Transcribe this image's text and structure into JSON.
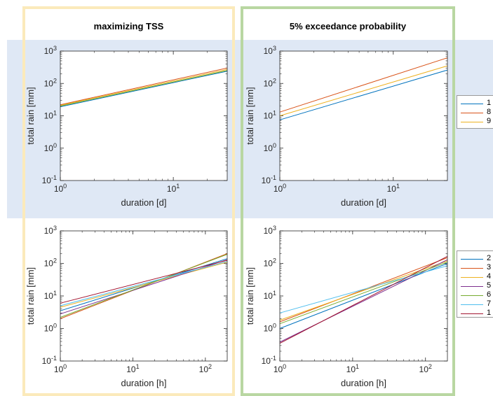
{
  "columns": [
    {
      "title": "maximizing TSS"
    },
    {
      "title": "5% exceedance probability"
    }
  ],
  "legends": [
    {
      "entries": [
        {
          "label": "1",
          "color": "#0072bd"
        },
        {
          "label": "8",
          "color": "#d95319"
        },
        {
          "label": "9",
          "color": "#edb120"
        }
      ]
    },
    {
      "entries": [
        {
          "label": "2",
          "color": "#0072bd"
        },
        {
          "label": "3",
          "color": "#d95319"
        },
        {
          "label": "4",
          "color": "#edb120"
        },
        {
          "label": "5",
          "color": "#7e2f8e"
        },
        {
          "label": "6",
          "color": "#77ac30"
        },
        {
          "label": "7",
          "color": "#4dbeee"
        },
        {
          "label": "1",
          "color": "#a2142f"
        }
      ]
    }
  ],
  "chart_data": [
    {
      "type": "line",
      "xlabel": "duration [d]",
      "ylabel": "total rain [mm]",
      "x_scale": "log",
      "y_scale": "log",
      "xlim": [
        1,
        30
      ],
      "ylim": [
        0.1,
        1000
      ],
      "x_ticks": [
        "10^0",
        "10^1"
      ],
      "y_ticks": [
        "10^-1",
        "10^0",
        "10^1",
        "10^2",
        "10^3"
      ],
      "series": [
        {
          "name": "1",
          "color": "#0072bd",
          "x": [
            1,
            30
          ],
          "y": [
            19,
            240
          ]
        },
        {
          "name": "8",
          "color": "#d95319",
          "x": [
            1,
            30
          ],
          "y": [
            22,
            300
          ]
        },
        {
          "name": "9",
          "color": "#edb120",
          "x": [
            1,
            30
          ],
          "y": [
            21,
            270
          ]
        },
        {
          "color": "#77ac30",
          "x": [
            1,
            30
          ],
          "y": [
            20,
            250
          ]
        }
      ]
    },
    {
      "type": "line",
      "xlabel": "duration [d]",
      "ylabel": "total rain [mm]",
      "x_scale": "log",
      "y_scale": "log",
      "xlim": [
        1,
        30
      ],
      "ylim": [
        0.1,
        1000
      ],
      "x_ticks": [
        "10^0",
        "10^1"
      ],
      "y_ticks": [
        "10^-1",
        "10^0",
        "10^1",
        "10^2",
        "10^3"
      ],
      "series": [
        {
          "name": "1",
          "color": "#0072bd",
          "x": [
            1,
            30
          ],
          "y": [
            7.5,
            260
          ]
        },
        {
          "name": "8",
          "color": "#d95319",
          "x": [
            1,
            30
          ],
          "y": [
            13,
            620
          ]
        },
        {
          "name": "9",
          "color": "#edb120",
          "x": [
            1,
            30
          ],
          "y": [
            10,
            350
          ]
        }
      ]
    },
    {
      "type": "line",
      "xlabel": "duration [h]",
      "ylabel": "total rain [mm]",
      "x_scale": "log",
      "y_scale": "log",
      "xlim": [
        1,
        200
      ],
      "ylim": [
        0.1,
        1000
      ],
      "x_ticks": [
        "10^0",
        "10^1",
        "10^2"
      ],
      "y_ticks": [
        "10^-1",
        "10^0",
        "10^1",
        "10^2",
        "10^3"
      ],
      "series": [
        {
          "color": "#0072bd",
          "x": [
            1,
            200
          ],
          "y": [
            3.5,
            140
          ]
        },
        {
          "color": "#d95319",
          "x": [
            1,
            200
          ],
          "y": [
            2.0,
            200
          ]
        },
        {
          "color": "#edb120",
          "x": [
            1,
            200
          ],
          "y": [
            4.5,
            110
          ]
        },
        {
          "color": "#7e2f8e",
          "x": [
            1,
            200
          ],
          "y": [
            2.8,
            130
          ]
        },
        {
          "color": "#77ac30",
          "x": [
            1,
            200
          ],
          "y": [
            2.2,
            190
          ]
        },
        {
          "color": "#4dbeee",
          "x": [
            1,
            200
          ],
          "y": [
            5.0,
            115
          ]
        },
        {
          "color": "#a2142f",
          "x": [
            1,
            200
          ],
          "y": [
            6.0,
            125
          ]
        }
      ]
    },
    {
      "type": "line",
      "xlabel": "duration [h]",
      "ylabel": "total rain [mm]",
      "x_scale": "log",
      "y_scale": "log",
      "xlim": [
        1,
        200
      ],
      "ylim": [
        0.1,
        1000
      ],
      "x_ticks": [
        "10^0",
        "10^1",
        "10^2"
      ],
      "y_ticks": [
        "10^-1",
        "10^0",
        "10^1",
        "10^2",
        "10^3"
      ],
      "series": [
        {
          "name": "2",
          "color": "#0072bd",
          "x": [
            1,
            200
          ],
          "y": [
            1.0,
            100
          ]
        },
        {
          "name": "3",
          "color": "#d95319",
          "x": [
            1,
            200
          ],
          "y": [
            1.6,
            150
          ]
        },
        {
          "name": "4",
          "color": "#edb120",
          "x": [
            1,
            200
          ],
          "y": [
            1.8,
            120
          ]
        },
        {
          "name": "5",
          "color": "#7e2f8e",
          "x": [
            1,
            200
          ],
          "y": [
            0.38,
            130
          ]
        },
        {
          "name": "6",
          "color": "#77ac30",
          "x": [
            1,
            200
          ],
          "y": [
            1.4,
            110
          ]
        },
        {
          "name": "7",
          "color": "#4dbeee",
          "x": [
            1,
            200
          ],
          "y": [
            3.0,
            85
          ]
        },
        {
          "name": "1",
          "color": "#a2142f",
          "x": [
            1,
            200
          ],
          "y": [
            0.35,
            165
          ]
        }
      ]
    }
  ]
}
